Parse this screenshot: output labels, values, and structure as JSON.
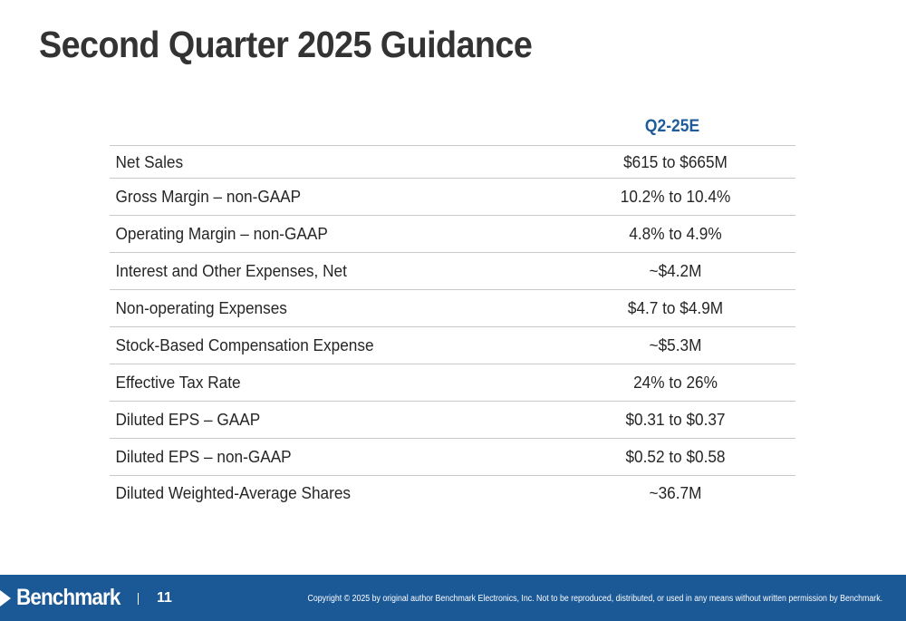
{
  "slide": {
    "title": "Second Quarter 2025 Guidance",
    "column_header": "Q2-25E"
  },
  "table": {
    "rows": [
      {
        "label": "Net Sales",
        "value": "$615 to $665M"
      },
      {
        "label": "Gross Margin – non-GAAP",
        "value": "10.2% to 10.4%"
      },
      {
        "label": "Operating Margin – non-GAAP",
        "value": "4.8% to 4.9%"
      },
      {
        "label": "Interest and Other Expenses, Net",
        "value": "~$4.2M"
      },
      {
        "label": "Non-operating Expenses",
        "value": "$4.7 to $4.9M"
      },
      {
        "label": "Stock-Based Compensation Expense",
        "value": "~$5.3M"
      },
      {
        "label": "Effective Tax Rate",
        "value": "24% to 26%"
      },
      {
        "label": "Diluted EPS – GAAP",
        "value": "$0.31 to $0.37"
      },
      {
        "label": "Diluted EPS – non-GAAP",
        "value": "$0.52 to $0.58"
      },
      {
        "label": "Diluted Weighted-Average Shares",
        "value": "~36.7M"
      }
    ]
  },
  "footer": {
    "logo_text": "Benchmark",
    "logo_icon": "triangle-play-icon",
    "page_number": "11",
    "copyright": "Copyright © 2025 by original author Benchmark Electronics, Inc. Not to be reproduced, distributed, or used in any means without written permission by Benchmark.",
    "background_color": "#1a5896"
  },
  "colors": {
    "header_accent": "#1f5c99",
    "title": "#333333"
  }
}
